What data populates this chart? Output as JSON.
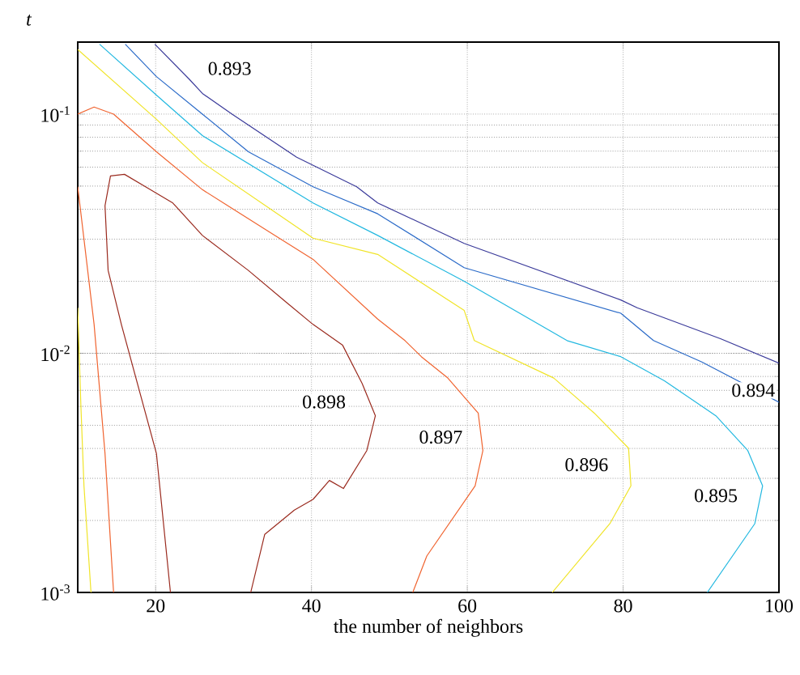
{
  "chart_data": {
    "type": "line",
    "xlabel": "the number of neighbors",
    "ylabel": "t",
    "log": "y",
    "xlim": [
      10,
      100
    ],
    "ylim": [
      0.001,
      0.2
    ],
    "xticks": [
      20,
      40,
      60,
      80,
      100
    ],
    "yticks": [
      {
        "value": 0.001,
        "label": "10$^{-3}$"
      },
      {
        "value": 0.01,
        "label": "10$^{-2}$"
      },
      {
        "value": 0.1,
        "label": "10$^{-1}$"
      }
    ],
    "grid": true,
    "series": [
      {
        "color": "#3a3a9a",
        "x": [
          19.9,
          24.3,
          26.0,
          29.8,
          38.1,
          45.8,
          48.5,
          59.6,
          79.7,
          81.8,
          92.5,
          100
        ],
        "values": [
          0.196,
          0.14,
          0.122,
          0.1,
          0.066,
          0.0497,
          0.0425,
          0.0288,
          0.0167,
          0.0155,
          0.0115,
          0.0091
        ]
      },
      {
        "color": "#2a6ac8",
        "x": [
          16.1,
          20.1,
          26.0,
          31.9,
          40.2,
          48.5,
          59.6,
          79.7,
          83.9,
          90.1,
          100
        ],
        "values": [
          0.196,
          0.1435,
          0.1,
          0.0696,
          0.0497,
          0.0383,
          0.0228,
          0.0147,
          0.0113,
          0.0092,
          0.00624
        ]
      },
      {
        "color": "#22b8e0",
        "x": [
          12.8,
          20.1,
          26.0,
          40.2,
          48.5,
          59.6,
          72.8,
          79.7,
          85.3,
          91.9,
          96.0,
          97.9,
          96.9,
          90.8
        ],
        "values": [
          0.196,
          0.12,
          0.0813,
          0.0425,
          0.0311,
          0.02,
          0.0113,
          0.00968,
          0.00767,
          0.00548,
          0.00392,
          0.00279,
          0.00194,
          0.001
        ]
      },
      {
        "color": "#f0e428",
        "x": [
          10,
          20.1,
          26.0,
          40.2,
          48.5,
          59.6,
          60.9,
          71.1,
          76.3,
          80.7,
          81.0,
          78.3,
          70.9,
          null,
          10,
          10.4,
          10.8,
          11.7
        ],
        "values": [
          0.186,
          0.0951,
          0.0627,
          0.0303,
          0.0259,
          0.0151,
          0.0113,
          0.00788,
          0.00562,
          0.00401,
          0.00279,
          0.00194,
          0.001,
          null,
          0.0155,
          0.00608,
          0.00279,
          0.001
        ]
      },
      {
        "color": "#f06430",
        "x": [
          10,
          12.1,
          14.6,
          20.1,
          26.0,
          34.7,
          40.2,
          48.5,
          52.0,
          54.1,
          57.5,
          61.4,
          62.0,
          61.0,
          54.8,
          53.0,
          null,
          10,
          12.1,
          13.5,
          14.6
        ],
        "values": [
          0.1,
          0.107,
          0.1,
          0.0696,
          0.0483,
          0.032,
          0.0247,
          0.0139,
          0.0113,
          0.00968,
          0.00788,
          0.00562,
          0.00392,
          0.00279,
          0.00142,
          0.001,
          null,
          0.0497,
          0.0132,
          0.00381,
          0.001
        ]
      },
      {
        "color": "#9a2a1e",
        "x": [
          21.9,
          20.1,
          15.6,
          13.9,
          13.5,
          14.2,
          16.0,
          18.7,
          22.2,
          26.0,
          31.9,
          36.8,
          40.2,
          44.0,
          46.5,
          48.2,
          47.1,
          44.1,
          42.3,
          40.2,
          37.8,
          34.0,
          32.2
        ],
        "values": [
          0.001,
          0.00381,
          0.0132,
          0.0222,
          0.0414,
          0.0551,
          0.056,
          0.0497,
          0.0425,
          0.0311,
          0.0222,
          0.0163,
          0.0132,
          0.0108,
          0.00748,
          0.00548,
          0.00392,
          0.00272,
          0.00294,
          0.00245,
          0.00221,
          0.00175,
          0.001
        ]
      }
    ],
    "annotations": [
      {
        "text": "0.893",
        "x": 29.5,
        "y": 0.155
      },
      {
        "text": "0.894",
        "x": 96.7,
        "y": 0.007
      },
      {
        "text": "0.895",
        "x": 91.9,
        "y": 0.00254
      },
      {
        "text": "0.896",
        "x": 75.3,
        "y": 0.00342
      },
      {
        "text": "0.897",
        "x": 56.6,
        "y": 0.00446
      },
      {
        "text": "0.898",
        "x": 41.6,
        "y": 0.00626
      }
    ]
  }
}
